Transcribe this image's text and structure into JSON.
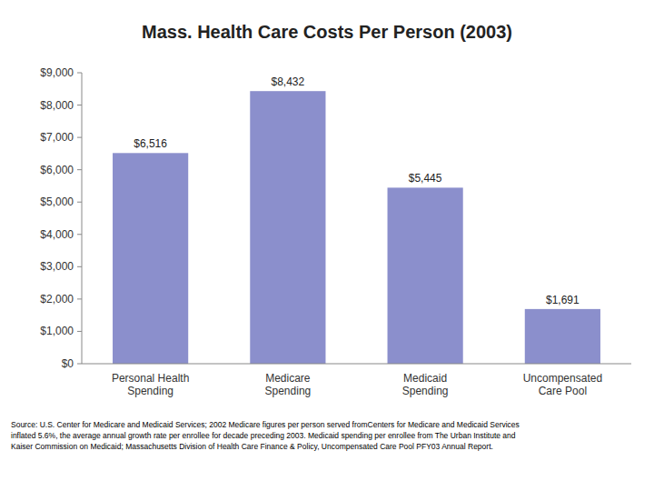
{
  "chart_data": {
    "type": "bar",
    "title": "Mass. Health Care Costs Per Person (2003)",
    "categories": [
      "Personal Health\nSpending",
      "Medicare\nSpending",
      "Medicaid\nSpending",
      "Uncompensated\nCare Pool"
    ],
    "values": [
      6516,
      8432,
      5445,
      1691
    ],
    "value_labels": [
      "$6,516",
      "$8,432",
      "$5,445",
      "$1,691"
    ],
    "data_labels": true,
    "color": "#8B8FCC",
    "ylim": [
      0,
      9000
    ],
    "yticks": [
      {
        "value": 0,
        "label": "$0"
      },
      {
        "value": 1000,
        "label": "$1,000"
      },
      {
        "value": 2000,
        "label": "$2,000"
      },
      {
        "value": 3000,
        "label": "$3,000"
      },
      {
        "value": 4000,
        "label": "$4,000"
      },
      {
        "value": 5000,
        "label": "$5,000"
      },
      {
        "value": 6000,
        "label": "$6,000"
      },
      {
        "value": 7000,
        "label": "$7,000"
      },
      {
        "value": 8000,
        "label": "$8,000"
      },
      {
        "value": 9000,
        "label": "$9,000"
      }
    ],
    "grid": false,
    "annotations": [
      "Source: U.S. Center for Medicare and Medicaid Services; 2002 Medicare figures per person served fromCenters for Medicare and Medicaid Services\ninflated 5.6%, the average annual growth rate per enrollee for decade preceding 2003. Medicaid spending per enrollee from The Urban Institute and\nKaiser Commission on Medicaid; Massachusetts Division of Health Care Finance & Policy, Uncompensated Care Pool PFY03 Annual Report."
    ]
  }
}
